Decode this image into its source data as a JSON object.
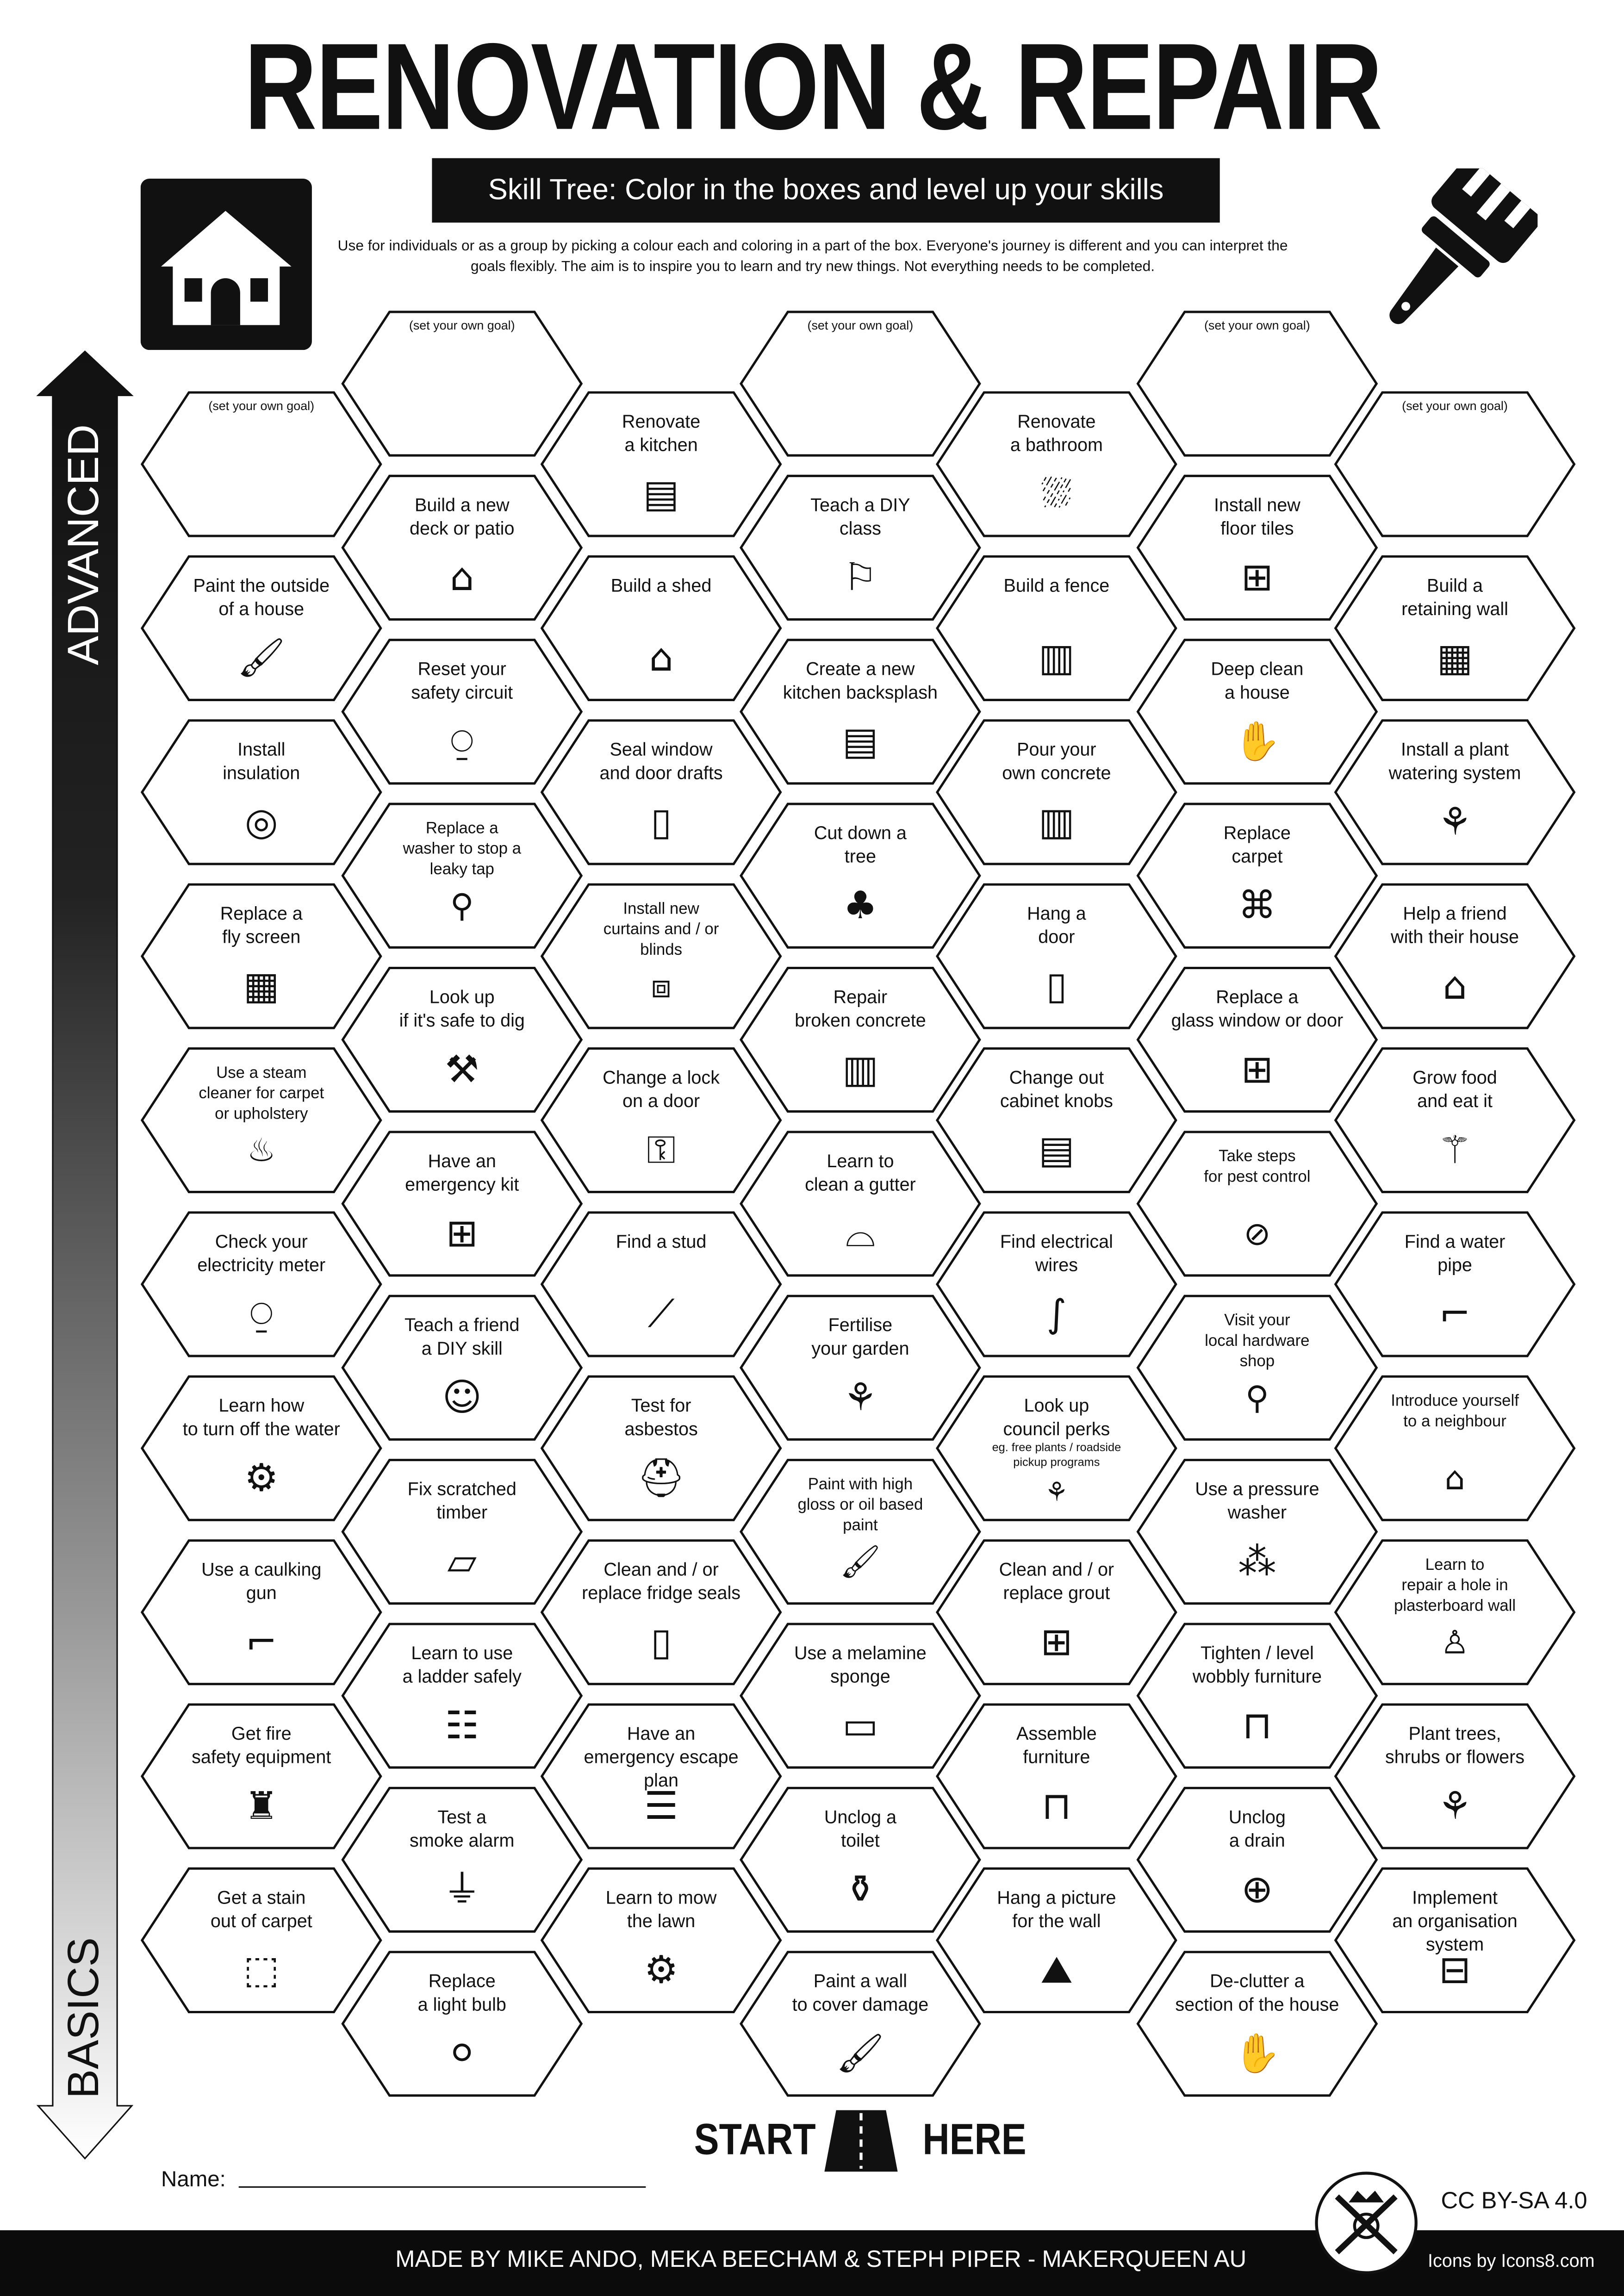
{
  "header": {
    "title": "RENOVATION & REPAIR",
    "subtitle": "Skill Tree:  Color in the boxes and level up your skills",
    "intro": "Use for individuals or as a group by picking a colour each and coloring in a part of the box.  Everyone's journey is different and you can interpret the goals flexibly.  The aim is to inspire you to learn and try new things. Not everything needs to be completed."
  },
  "axis": {
    "top_label": "ADVANCED",
    "bottom_label": "BASICS"
  },
  "columns": [
    [
      {
        "goal": "(set your own goal)"
      },
      {
        "label": "Paint the outside\nof a house",
        "icon": "paint-brush"
      },
      {
        "label": "Install\ninsulation",
        "icon": "insulation-roll"
      },
      {
        "label": "Replace a\nfly screen",
        "icon": "grid"
      },
      {
        "label": "Use a steam\ncleaner for carpet\nor upholstery",
        "icon": "steam-cleaner",
        "small": true
      },
      {
        "label": "Check your\nelectricity meter",
        "icon": "meter"
      },
      {
        "label": "Learn how\nto turn off the water",
        "icon": "valve"
      },
      {
        "label": "Use a caulking\ngun",
        "icon": "caulking-gun"
      },
      {
        "label": "Get fire\nsafety equipment",
        "icon": "fire-extinguisher"
      },
      {
        "label": "Get a stain\nout of carpet",
        "icon": "sparkle-square"
      }
    ],
    [
      {
        "goal": "(set your own goal)"
      },
      {
        "label": "Build a new\ndeck or patio",
        "icon": "house-deck"
      },
      {
        "label": "Reset your\nsafety circuit",
        "icon": "meter"
      },
      {
        "label": "Replace a\nwasher to stop a\nleaky tap",
        "icon": "tap",
        "small": true
      },
      {
        "label": "Look up\nif it's safe to dig",
        "icon": "shovel"
      },
      {
        "label": "Have an\nemergency kit",
        "icon": "first-aid"
      },
      {
        "label": "Teach a friend\na DIY skill",
        "icon": "teacher"
      },
      {
        "label": "Fix scratched\ntimber",
        "icon": "timber"
      },
      {
        "label": "Learn to use\na ladder safely",
        "icon": "ladder"
      },
      {
        "label": "Test a\nsmoke alarm",
        "icon": "smoke-alarm"
      },
      {
        "label": "Replace\na light bulb",
        "icon": "light-bulb"
      }
    ],
    [
      {
        "label": "Renovate\na kitchen",
        "icon": "kitchen"
      },
      {
        "label": "Build a shed",
        "icon": "shed"
      },
      {
        "label": "Seal window\nand door drafts",
        "icon": "door-draft"
      },
      {
        "label": "Install new\ncurtains and / or\nblinds",
        "icon": "curtains",
        "small": true
      },
      {
        "label": "Change a lock\non a door",
        "icon": "door-lock"
      },
      {
        "label": "Find a stud",
        "icon": "nail"
      },
      {
        "label": "Test for\nasbestos",
        "icon": "respirator"
      },
      {
        "label": "Clean and / or\nreplace fridge seals",
        "icon": "fridge"
      },
      {
        "label": "Have an\nemergency escape\nplan",
        "icon": "checklist"
      },
      {
        "label": "Learn to mow\nthe lawn",
        "icon": "lawn-mower"
      }
    ],
    [
      {
        "goal": "(set your own goal)"
      },
      {
        "label": "Teach a DIY\nclass",
        "icon": "teacher-board"
      },
      {
        "label": "Create a new\nkitchen backsplash",
        "icon": "kitchen"
      },
      {
        "label": "Cut down a\ntree",
        "icon": "tree-stump"
      },
      {
        "label": "Repair\nbroken concrete",
        "icon": "concrete"
      },
      {
        "label": "Learn to\nclean a gutter",
        "icon": "gutter"
      },
      {
        "label": "Fertilise\nyour garden",
        "icon": "plant"
      },
      {
        "label": "Paint with high\ngloss or oil based\npaint",
        "icon": "paint-brush",
        "small": true
      },
      {
        "label": "Use a melamine\nsponge",
        "icon": "sponge"
      },
      {
        "label": "Unclog a\ntoilet",
        "icon": "toilet"
      },
      {
        "label": "Paint a wall\nto cover damage",
        "icon": "paint-brush"
      }
    ],
    [
      {
        "label": "Renovate\na bathroom",
        "icon": "bathtub"
      },
      {
        "label": "Build a fence",
        "icon": "fence"
      },
      {
        "label": "Pour your\nown concrete",
        "icon": "concrete"
      },
      {
        "label": "Hang a\ndoor",
        "icon": "door"
      },
      {
        "label": "Change out\ncabinet knobs",
        "icon": "cabinet"
      },
      {
        "label": "Find electrical\nwires",
        "icon": "wires"
      },
      {
        "label": "Look up\ncouncil perks",
        "sub": "eg. free plants / roadside\npickup programs",
        "icon": "plant"
      },
      {
        "label": "Clean and / or\nreplace grout",
        "icon": "tiles"
      },
      {
        "label": "Assemble\nfurniture",
        "icon": "table"
      },
      {
        "label": "Hang a picture\nfor the wall",
        "icon": "picture"
      }
    ],
    [
      {
        "goal": "(set your own goal)"
      },
      {
        "label": "Install new\nfloor tiles",
        "icon": "tiles"
      },
      {
        "label": "Deep clean\na house",
        "icon": "clean-hands"
      },
      {
        "label": "Replace\ncarpet",
        "icon": "carpet-roll"
      },
      {
        "label": "Replace a\nglass window or door",
        "icon": "window"
      },
      {
        "label": "Take steps\nfor pest control",
        "icon": "no-bugs",
        "small": true
      },
      {
        "label": "Visit your\nlocal hardware\nshop",
        "icon": "location-pin",
        "small": true
      },
      {
        "label": "Use a pressure\nwasher",
        "icon": "sprinkler"
      },
      {
        "label": "Tighten / level\nwobbly furniture",
        "icon": "table"
      },
      {
        "label": "Unclog\na drain",
        "icon": "drain"
      },
      {
        "label": "De-clutter a\nsection of the house",
        "icon": "clean-hands"
      }
    ],
    [
      {
        "goal": "(set your own goal)"
      },
      {
        "label": "Build a\nretaining wall",
        "icon": "brick-wall"
      },
      {
        "label": "Install a plant\nwatering system",
        "icon": "plant"
      },
      {
        "label": "Help a friend\nwith their house",
        "icon": "house-person"
      },
      {
        "label": "Grow food\nand eat it",
        "icon": "carrot"
      },
      {
        "label": "Find a water\npipe",
        "icon": "pipe"
      },
      {
        "label": "Introduce yourself\nto a neighbour",
        "icon": "house-person",
        "small": true
      },
      {
        "label": "Learn to\nrepair a hole in\nplasterboard wall",
        "icon": "plasterer",
        "small": true
      },
      {
        "label": "Plant trees,\nshrubs or flowers",
        "icon": "plant"
      },
      {
        "label": "Implement\nan organisation\nsystem",
        "icon": "shelf"
      }
    ]
  ],
  "start": {
    "left": "START",
    "right": "HERE"
  },
  "name_label": "Name:",
  "footer": {
    "credits": "MADE BY MIKE ANDO, MEKA BEECHAM & STEPH PIPER  -  MAKERQUEEN AU",
    "license": "CC BY-SA 4.0",
    "icons_credit": "Icons by Icons8.com"
  }
}
